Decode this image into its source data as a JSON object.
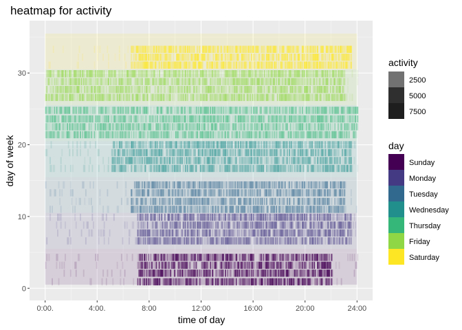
{
  "chart_data": {
    "type": "heatmap",
    "title": "heatmap for activity",
    "xlabel": "time of day",
    "ylabel": "day of week",
    "x_range_hours": [
      -1.2,
      25.2
    ],
    "y_range": [
      -1.7,
      37.3
    ],
    "x_ticks": [
      {
        "hour": 0,
        "label": "0:00."
      },
      {
        "hour": 4,
        "label": "4:00."
      },
      {
        "hour": 8,
        "label": "8:00"
      },
      {
        "hour": 12,
        "label": "12:00"
      },
      {
        "hour": 16,
        "label": "16:00"
      },
      {
        "hour": 20,
        "label": "20:00"
      },
      {
        "hour": 24,
        "label": "24:00"
      }
    ],
    "y_ticks": [
      {
        "value": 0,
        "label": "0"
      },
      {
        "value": 10,
        "label": "10"
      },
      {
        "value": 20,
        "label": "20"
      },
      {
        "value": 30,
        "label": "30"
      }
    ],
    "grid": true,
    "panel_background": "#ebebeb",
    "legend_position": "right",
    "activity_legend": {
      "title": "activity",
      "entries": [
        {
          "label": "2500",
          "color": "#727272"
        },
        {
          "label": "5000",
          "color": "#2f2f2f"
        },
        {
          "label": "7500",
          "color": "#1e1e1e"
        }
      ]
    },
    "day_legend": {
      "title": "day",
      "entries": [
        {
          "label": "Sunday",
          "color": "#440154"
        },
        {
          "label": "Monday",
          "color": "#443a83"
        },
        {
          "label": "Tuesday",
          "color": "#31688e"
        },
        {
          "label": "Wednesday",
          "color": "#21908d"
        },
        {
          "label": "Thursday",
          "color": "#35b779"
        },
        {
          "label": "Friday",
          "color": "#8fd744"
        },
        {
          "label": "Saturday",
          "color": "#fde725"
        }
      ]
    },
    "day_bands": [
      {
        "day": "Sunday",
        "y_from": 0.5,
        "y_to": 5.5,
        "rows": [
          0.9,
          2.1,
          3.2,
          4.3
        ],
        "peak_hours": [
          7,
          22
        ],
        "intensity": 0.8
      },
      {
        "day": "Monday",
        "y_from": 5.5,
        "y_to": 10.5,
        "rows": [
          6.6,
          7.7,
          8.8,
          9.9
        ],
        "peak_hours": [
          7,
          23.5
        ],
        "intensity": 0.6
      },
      {
        "day": "Tuesday",
        "y_from": 10.5,
        "y_to": 15.5,
        "rows": [
          11.0,
          12.1,
          13.3,
          14.4
        ],
        "peak_hours": [
          6.5,
          23
        ],
        "intensity": 0.55
      },
      {
        "day": "Wednesday",
        "y_from": 15.5,
        "y_to": 20.5,
        "rows": [
          16.7,
          17.8,
          18.9,
          20.0
        ],
        "peak_hours": [
          5,
          23.5
        ],
        "intensity": 0.55
      },
      {
        "day": "Thursday",
        "y_from": 20.5,
        "y_to": 25.5,
        "rows": [
          21.4,
          22.5,
          23.6,
          24.8
        ],
        "peak_hours": [
          0,
          24
        ],
        "intensity": 0.55
      },
      {
        "day": "Friday",
        "y_from": 25.5,
        "y_to": 30.5,
        "rows": [
          26.6,
          27.7,
          28.8,
          29.9
        ],
        "peak_hours": [
          0,
          23
        ],
        "intensity": 0.6
      },
      {
        "day": "Saturday",
        "y_from": 30.5,
        "y_to": 35.5,
        "rows": [
          31.1,
          32.2,
          33.3
        ],
        "peak_hours": [
          6.5,
          23.5
        ],
        "intensity": 0.7
      }
    ]
  }
}
